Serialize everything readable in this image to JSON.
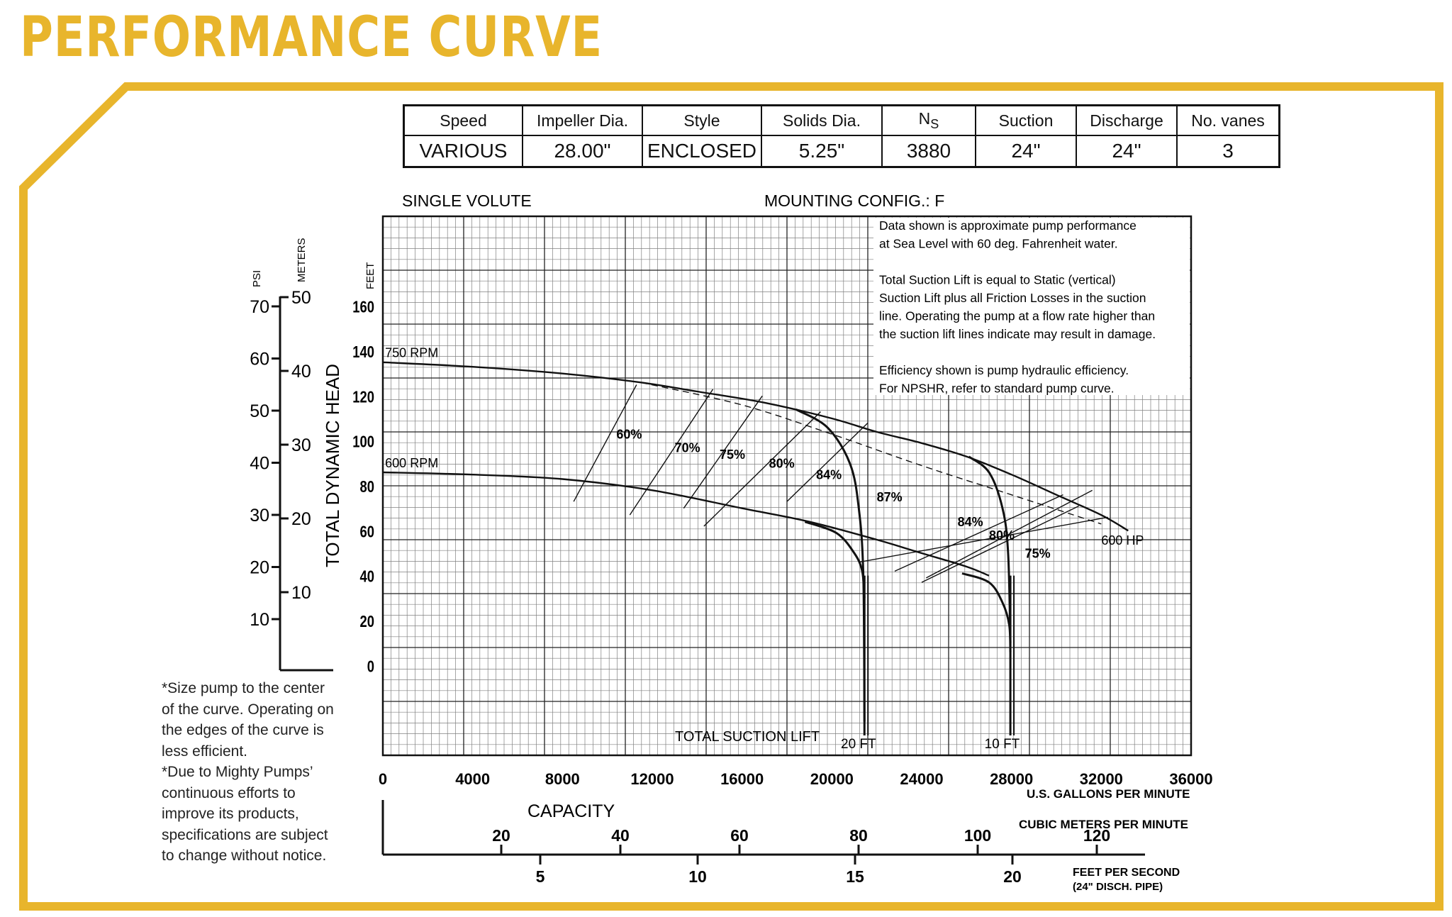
{
  "page_title": "PERFORMANCE CURVE",
  "brand_color": "#e8b52c",
  "spec_table": {
    "headers": [
      "Speed",
      "Impeller Dia.",
      "Style",
      "Solids Dia.",
      "N",
      "Suction",
      "Discharge",
      "No. vanes"
    ],
    "ns_subscript": "S",
    "values": [
      "VARIOUS",
      "28.00\"",
      "ENCLOSED",
      "5.25\"",
      "3880",
      "24\"",
      "24\"",
      "3"
    ]
  },
  "header_left": "SINGLE VOLUTE",
  "header_mounting": "MOUNTING CONFIG.:  F",
  "notes": [
    "Data shown is approximate pump performance",
    "at Sea Level with 60 deg. Fahrenheit water.",
    "",
    "Total Suction Lift is equal to Static (vertical)",
    "Suction Lift plus all Friction Losses in the suction",
    "line. Operating the pump at a flow rate higher than",
    "the suction lift lines indicate may result in damage.",
    "",
    "Efficiency shown is pump hydraulic efficiency.",
    "For NPSHR, refer to standard pump curve."
  ],
  "footnote": [
    "*Size pump to the center",
    "of the curve. Operating on",
    "the edges of the curve is",
    "less efficient.",
    "*Due to Mighty Pumps’",
    "continuous efforts to",
    "improve its products,",
    "specifications are subject",
    "to change without notice."
  ],
  "chart_data": {
    "type": "line",
    "title": "",
    "xlabel": "U.S. GALLONS PER MINUTE",
    "ylabel": "TOTAL DYNAMIC HEAD",
    "y_unit": "FEET",
    "xlim": [
      0,
      36000
    ],
    "ylim": [
      -40,
      200
    ],
    "x_ticks": [
      "0",
      "4000",
      "8000",
      "12000",
      "16000",
      "20000",
      "24000",
      "28000",
      "32000",
      "36000"
    ],
    "y_ticks": [
      "0",
      "20",
      "40",
      "60",
      "80",
      "100",
      "120",
      "140",
      "160"
    ],
    "grid": true,
    "series": [
      {
        "name": "750 RPM",
        "x": [
          0,
          4000,
          8000,
          11500,
          14000,
          17000,
          20000,
          22000,
          24000,
          26000,
          28000,
          30000,
          32000,
          33200
        ],
        "y": [
          135,
          133,
          130,
          126,
          122,
          117,
          110,
          104,
          99,
          93,
          85,
          76,
          67,
          60
        ]
      },
      {
        "name": "600 RPM",
        "x": [
          0,
          4000,
          8000,
          12000,
          16000,
          19000,
          22000,
          24000,
          26000,
          27000
        ],
        "y": [
          86,
          85,
          83,
          78,
          70,
          64,
          56,
          50,
          44,
          40
        ]
      },
      {
        "name": "600 HP",
        "x": [
          11500,
          16000,
          20000,
          24000,
          28000,
          32000
        ],
        "y": [
          126,
          116,
          103,
          89,
          76,
          63
        ]
      }
    ],
    "suction_lift_title": "TOTAL SUCTION LIFT",
    "suction_lift_lines": [
      {
        "label": "20 FT",
        "x": [
          18400,
          19800,
          20800,
          21200,
          21400,
          21450
        ],
        "y": [
          114,
          106,
          90,
          70,
          40,
          -25
        ]
      },
      {
        "label": "10 FT",
        "x": [
          26100,
          27000,
          27600,
          27850,
          27950
        ],
        "y": [
          93,
          86,
          70,
          50,
          10
        ]
      },
      {
        "label": "20 FT",
        "x": [
          18800,
          20200,
          21000,
          21350,
          21450
        ],
        "y": [
          64,
          59,
          50,
          42,
          30
        ]
      },
      {
        "label": "10 FT",
        "x": [
          25800,
          27000,
          27600,
          27900,
          27950
        ],
        "y": [
          41,
          37,
          28,
          18,
          6
        ]
      }
    ],
    "efficiency_lines": [
      {
        "label": "60%",
        "x": [
          8500,
          11300
        ],
        "y": [
          73,
          125
        ]
      },
      {
        "label": "70%",
        "x": [
          11000,
          14700
        ],
        "y": [
          67,
          123
        ]
      },
      {
        "label": "75%",
        "x": [
          13400,
          16900
        ],
        "y": [
          70,
          120
        ]
      },
      {
        "label": "80%",
        "x": [
          14300,
          19500
        ],
        "y": [
          62,
          113
        ]
      },
      {
        "label": "84%",
        "x": [
          18000,
          21600
        ],
        "y": [
          73,
          108
        ]
      },
      {
        "label": "87%",
        "x": [
          21200,
          32300
        ],
        "y": [
          46,
          66
        ]
      },
      {
        "label": "84%",
        "x": [
          22800,
          30300
        ],
        "y": [
          42,
          76
        ]
      },
      {
        "label": "80%",
        "x": [
          24200,
          31600
        ],
        "y": [
          39,
          78
        ]
      },
      {
        "label": "75%",
        "x": [
          24000,
          31000
        ],
        "y": [
          37,
          71
        ]
      }
    ],
    "efficiency_label_positions": [
      {
        "label": "60%",
        "x": 10400,
        "y": 101
      },
      {
        "label": "70%",
        "x": 13000,
        "y": 95
      },
      {
        "label": "75%",
        "x": 15000,
        "y": 92
      },
      {
        "label": "80%",
        "x": 17200,
        "y": 88
      },
      {
        "label": "84%",
        "x": 19300,
        "y": 83
      },
      {
        "label": "87%",
        "x": 22000,
        "y": 73
      },
      {
        "label": "84%",
        "x": 25600,
        "y": 62
      },
      {
        "label": "80%",
        "x": 27000,
        "y": 56
      },
      {
        "label": "75%",
        "x": 28600,
        "y": 48
      }
    ],
    "secondary_axes": {
      "psi": {
        "label": "PSI",
        "ticks": [
          "70",
          "60",
          "50",
          "40",
          "30",
          "20",
          "10"
        ]
      },
      "meters": {
        "label": "METERS",
        "ticks": [
          "50",
          "40",
          "30",
          "20",
          "10"
        ]
      },
      "cubic_meters_per_minute": {
        "label": "CUBIC METERS PER MINUTE",
        "ticks": [
          "20",
          "40",
          "60",
          "80",
          "100",
          "120"
        ]
      },
      "feet_per_second": {
        "label": "FEET PER SECOND",
        "sublabel": "(24\" DISCH. PIPE)",
        "ticks": [
          "5",
          "10",
          "15",
          "20"
        ]
      },
      "capacity_label": "CAPACITY"
    }
  }
}
